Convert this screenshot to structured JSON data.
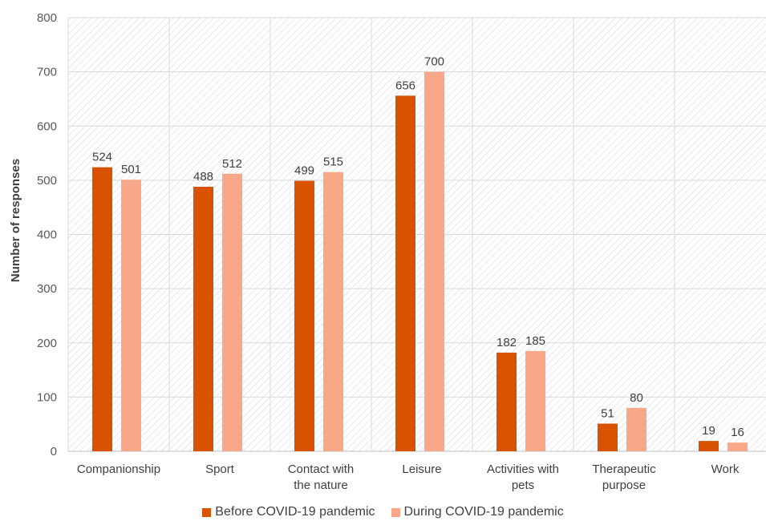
{
  "chart_data": {
    "type": "bar",
    "categories": [
      [
        "Companionship"
      ],
      [
        "Sport"
      ],
      [
        "Contact with",
        "the nature"
      ],
      [
        "Leisure"
      ],
      [
        "Activities with",
        "pets"
      ],
      [
        "Therapeutic",
        "purpose"
      ],
      [
        "Work"
      ]
    ],
    "series": [
      {
        "name": "Before COVID-19 pandemic",
        "color": "#D95200",
        "values": [
          524,
          488,
          499,
          656,
          182,
          51,
          19
        ]
      },
      {
        "name": "During COVID-19 pandemic",
        "color": "#F8A888",
        "values": [
          501,
          512,
          515,
          700,
          185,
          80,
          16
        ]
      }
    ],
    "xlabel": "",
    "ylabel": "Number of responses",
    "ylim": [
      0,
      800
    ],
    "yticks": [
      0,
      100,
      200,
      300,
      400,
      500,
      600,
      700,
      800
    ],
    "grid": true,
    "legend_position": "bottom"
  }
}
